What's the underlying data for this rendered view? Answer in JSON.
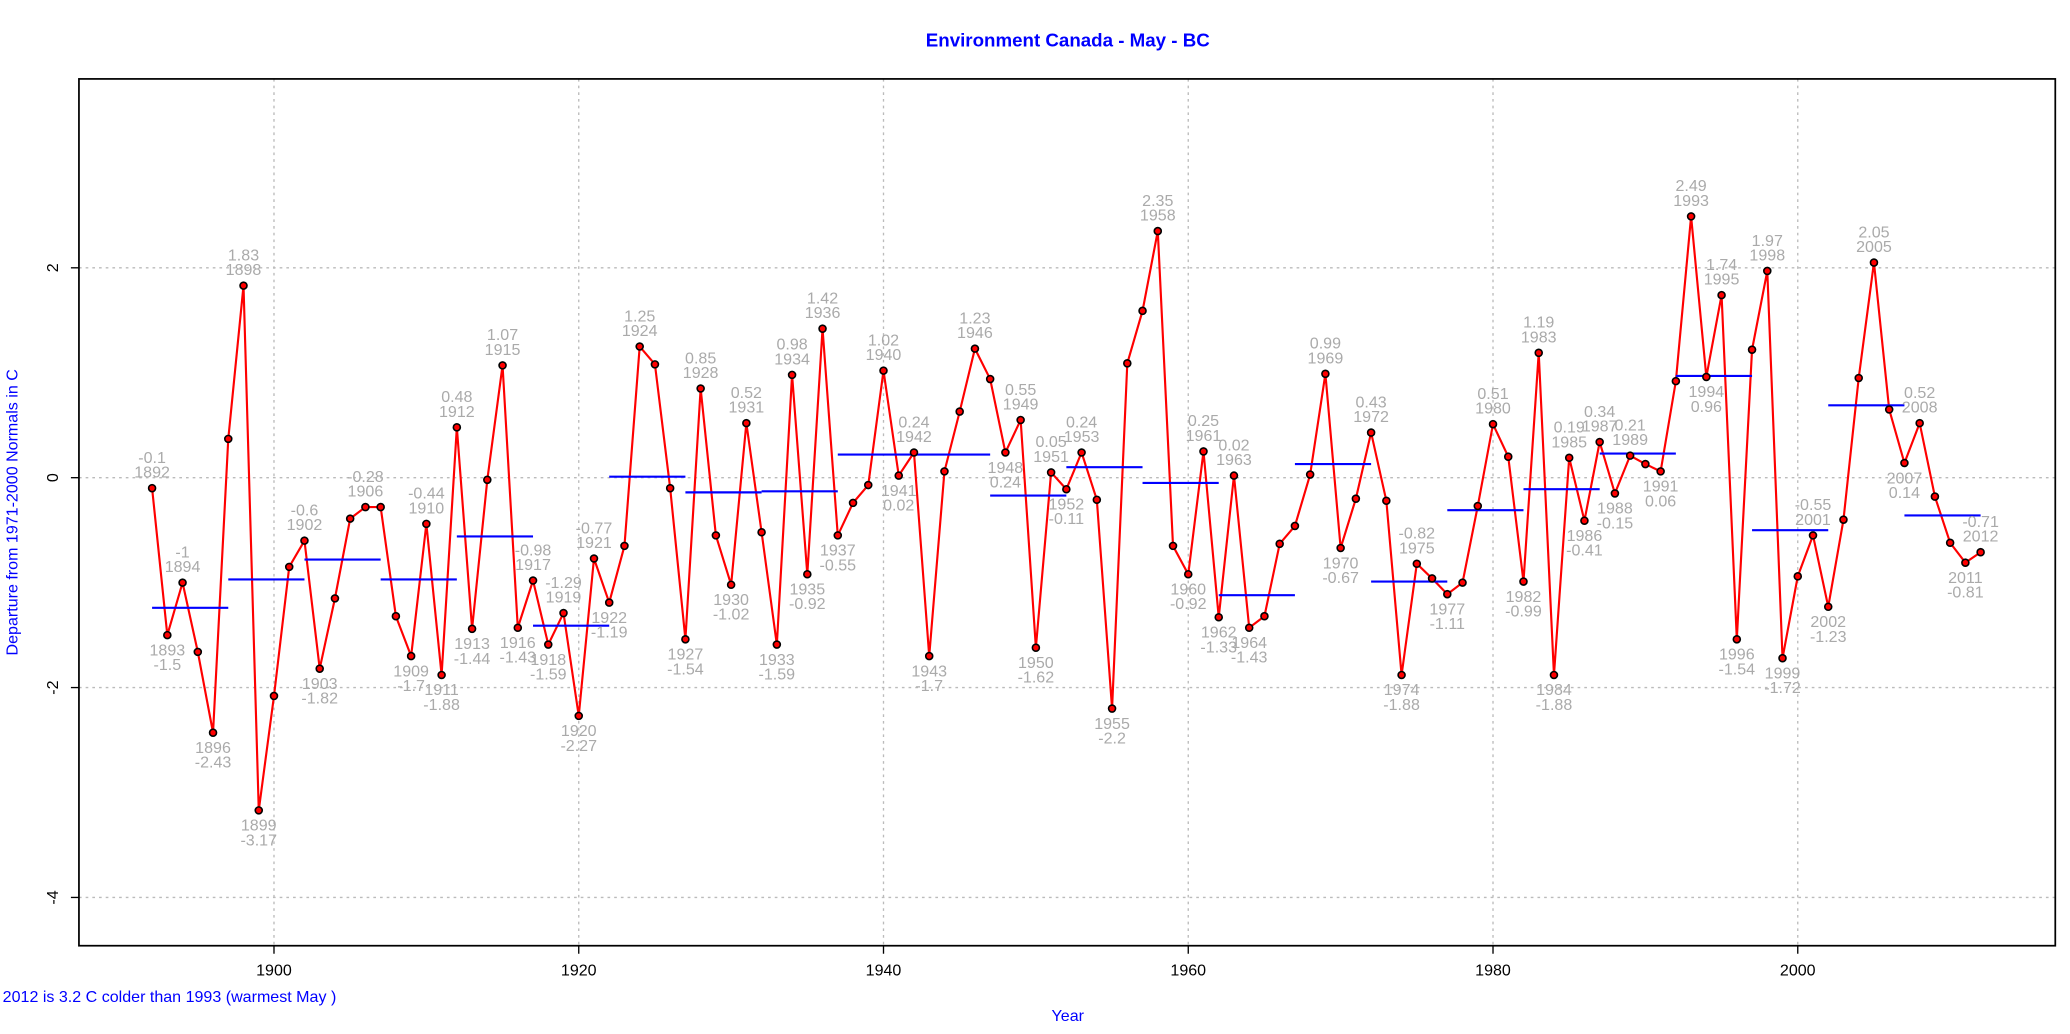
{
  "chart_data": {
    "type": "line",
    "title": "Environment Canada - May - BC",
    "ylabel": "Departure from 1971-2000 Normals in C",
    "xlabel": "Year",
    "note": "2012 is 3.2 C colder than 1993 (warmest May )",
    "x": [
      1892,
      1893,
      1894,
      1895,
      1896,
      1897,
      1898,
      1899,
      1900,
      1901,
      1902,
      1903,
      1904,
      1905,
      1906,
      1907,
      1908,
      1909,
      1910,
      1911,
      1912,
      1913,
      1914,
      1915,
      1916,
      1917,
      1918,
      1919,
      1920,
      1921,
      1922,
      1923,
      1924,
      1925,
      1926,
      1927,
      1928,
      1929,
      1930,
      1931,
      1932,
      1933,
      1934,
      1935,
      1936,
      1937,
      1938,
      1939,
      1940,
      1941,
      1942,
      1943,
      1944,
      1945,
      1946,
      1947,
      1948,
      1949,
      1950,
      1951,
      1952,
      1953,
      1954,
      1955,
      1956,
      1957,
      1958,
      1959,
      1960,
      1961,
      1962,
      1963,
      1964,
      1965,
      1966,
      1967,
      1968,
      1969,
      1970,
      1971,
      1972,
      1973,
      1974,
      1975,
      1976,
      1977,
      1978,
      1979,
      1980,
      1981,
      1982,
      1983,
      1984,
      1985,
      1986,
      1987,
      1988,
      1989,
      1990,
      1991,
      1992,
      1993,
      1994,
      1995,
      1996,
      1997,
      1998,
      1999,
      2000,
      2001,
      2002,
      2003,
      2004,
      2005,
      2006,
      2007,
      2008,
      2009,
      2010,
      2011,
      2012
    ],
    "series": [
      {
        "color": "#ff0000",
        "values": [
          -0.1,
          -1.5,
          -1,
          -1.66,
          -2.43,
          0.37,
          1.83,
          -3.17,
          -2.08,
          -0.85,
          -0.6,
          -1.82,
          -1.15,
          -0.39,
          -0.28,
          -0.28,
          -1.32,
          -1.7,
          -0.44,
          -1.88,
          0.48,
          -1.44,
          -0.02,
          1.07,
          -1.43,
          -0.98,
          -1.59,
          -1.29,
          -2.27,
          -0.77,
          -1.19,
          -0.65,
          1.25,
          1.08,
          -0.1,
          -1.54,
          0.85,
          -0.55,
          -1.02,
          0.52,
          -0.52,
          -1.59,
          0.98,
          -0.92,
          1.42,
          -0.55,
          -0.24,
          -0.07,
          1.02,
          0.02,
          0.24,
          -1.7,
          0.06,
          0.63,
          1.23,
          0.94,
          0.24,
          0.55,
          -1.62,
          0.05,
          -0.11,
          0.24,
          -0.21,
          -2.2,
          1.09,
          1.59,
          2.35,
          -0.65,
          -0.92,
          0.25,
          -1.33,
          0.02,
          -1.43,
          -1.32,
          -0.63,
          -0.46,
          0.03,
          0.99,
          -0.67,
          -0.2,
          0.43,
          -0.22,
          -1.88,
          -0.82,
          -0.96,
          -1.11,
          -1,
          -0.27,
          0.51,
          0.2,
          -0.99,
          1.19,
          -1.88,
          0.19,
          -0.41,
          0.34,
          -0.15,
          0.21,
          0.13,
          0.06,
          0.92,
          2.49,
          0.96,
          1.74,
          -1.54,
          1.22,
          1.97,
          -1.72,
          -0.94,
          -0.55,
          -1.23,
          -0.4,
          0.95,
          2.05,
          0.65,
          0.14,
          0.52,
          -0.18,
          -0.62,
          -0.81,
          -0.71
        ]
      }
    ],
    "labeled_years": [
      1892,
      1893,
      1894,
      1896,
      1898,
      1899,
      1902,
      1903,
      1906,
      1909,
      1910,
      1911,
      1912,
      1913,
      1915,
      1916,
      1917,
      1918,
      1919,
      1920,
      1921,
      1922,
      1924,
      1927,
      1928,
      1930,
      1931,
      1933,
      1934,
      1935,
      1936,
      1937,
      1940,
      1941,
      1942,
      1943,
      1946,
      1948,
      1949,
      1950,
      1951,
      1952,
      1953,
      1955,
      1958,
      1960,
      1961,
      1962,
      1963,
      1964,
      1969,
      1970,
      1972,
      1974,
      1975,
      1977,
      1980,
      1982,
      1983,
      1984,
      1985,
      1986,
      1987,
      1988,
      1989,
      1991,
      1993,
      1994,
      1995,
      1996,
      1998,
      1999,
      2001,
      2002,
      2005,
      2007,
      2008,
      2011,
      2012
    ],
    "averages": {
      "color": "#0000ff",
      "start": [
        1892,
        1897,
        1902,
        1907,
        1912,
        1917,
        1922,
        1927,
        1932,
        1937,
        1947,
        1952,
        1957,
        1962,
        1967,
        1972,
        1977,
        1982,
        1987,
        1992,
        1997,
        2002,
        2007
      ],
      "end": [
        1897,
        1902,
        1907,
        1912,
        1917,
        1922,
        1927,
        1932,
        1937,
        1947,
        1952,
        1957,
        1962,
        1967,
        1972,
        1977,
        1982,
        1987,
        1992,
        1997,
        2002,
        2007,
        2012
      ],
      "values": [
        -1.24,
        -0.97,
        -0.78,
        -0.97,
        -0.56,
        -1.41,
        0.01,
        -0.14,
        -0.13,
        0.22,
        -0.17,
        0.1,
        -0.05,
        -1.12,
        0.13,
        -0.99,
        -0.31,
        -0.11,
        0.23,
        0.97,
        -0.5,
        0.69,
        -0.36
      ]
    },
    "xlim": [
      1887.2,
      2016.9
    ],
    "ylim": [
      -4.46,
      3.8
    ],
    "xticks": [
      1900,
      1920,
      1940,
      1960,
      1980,
      2000
    ],
    "yticks": [
      -4,
      -2,
      0,
      2
    ],
    "grid": true
  }
}
